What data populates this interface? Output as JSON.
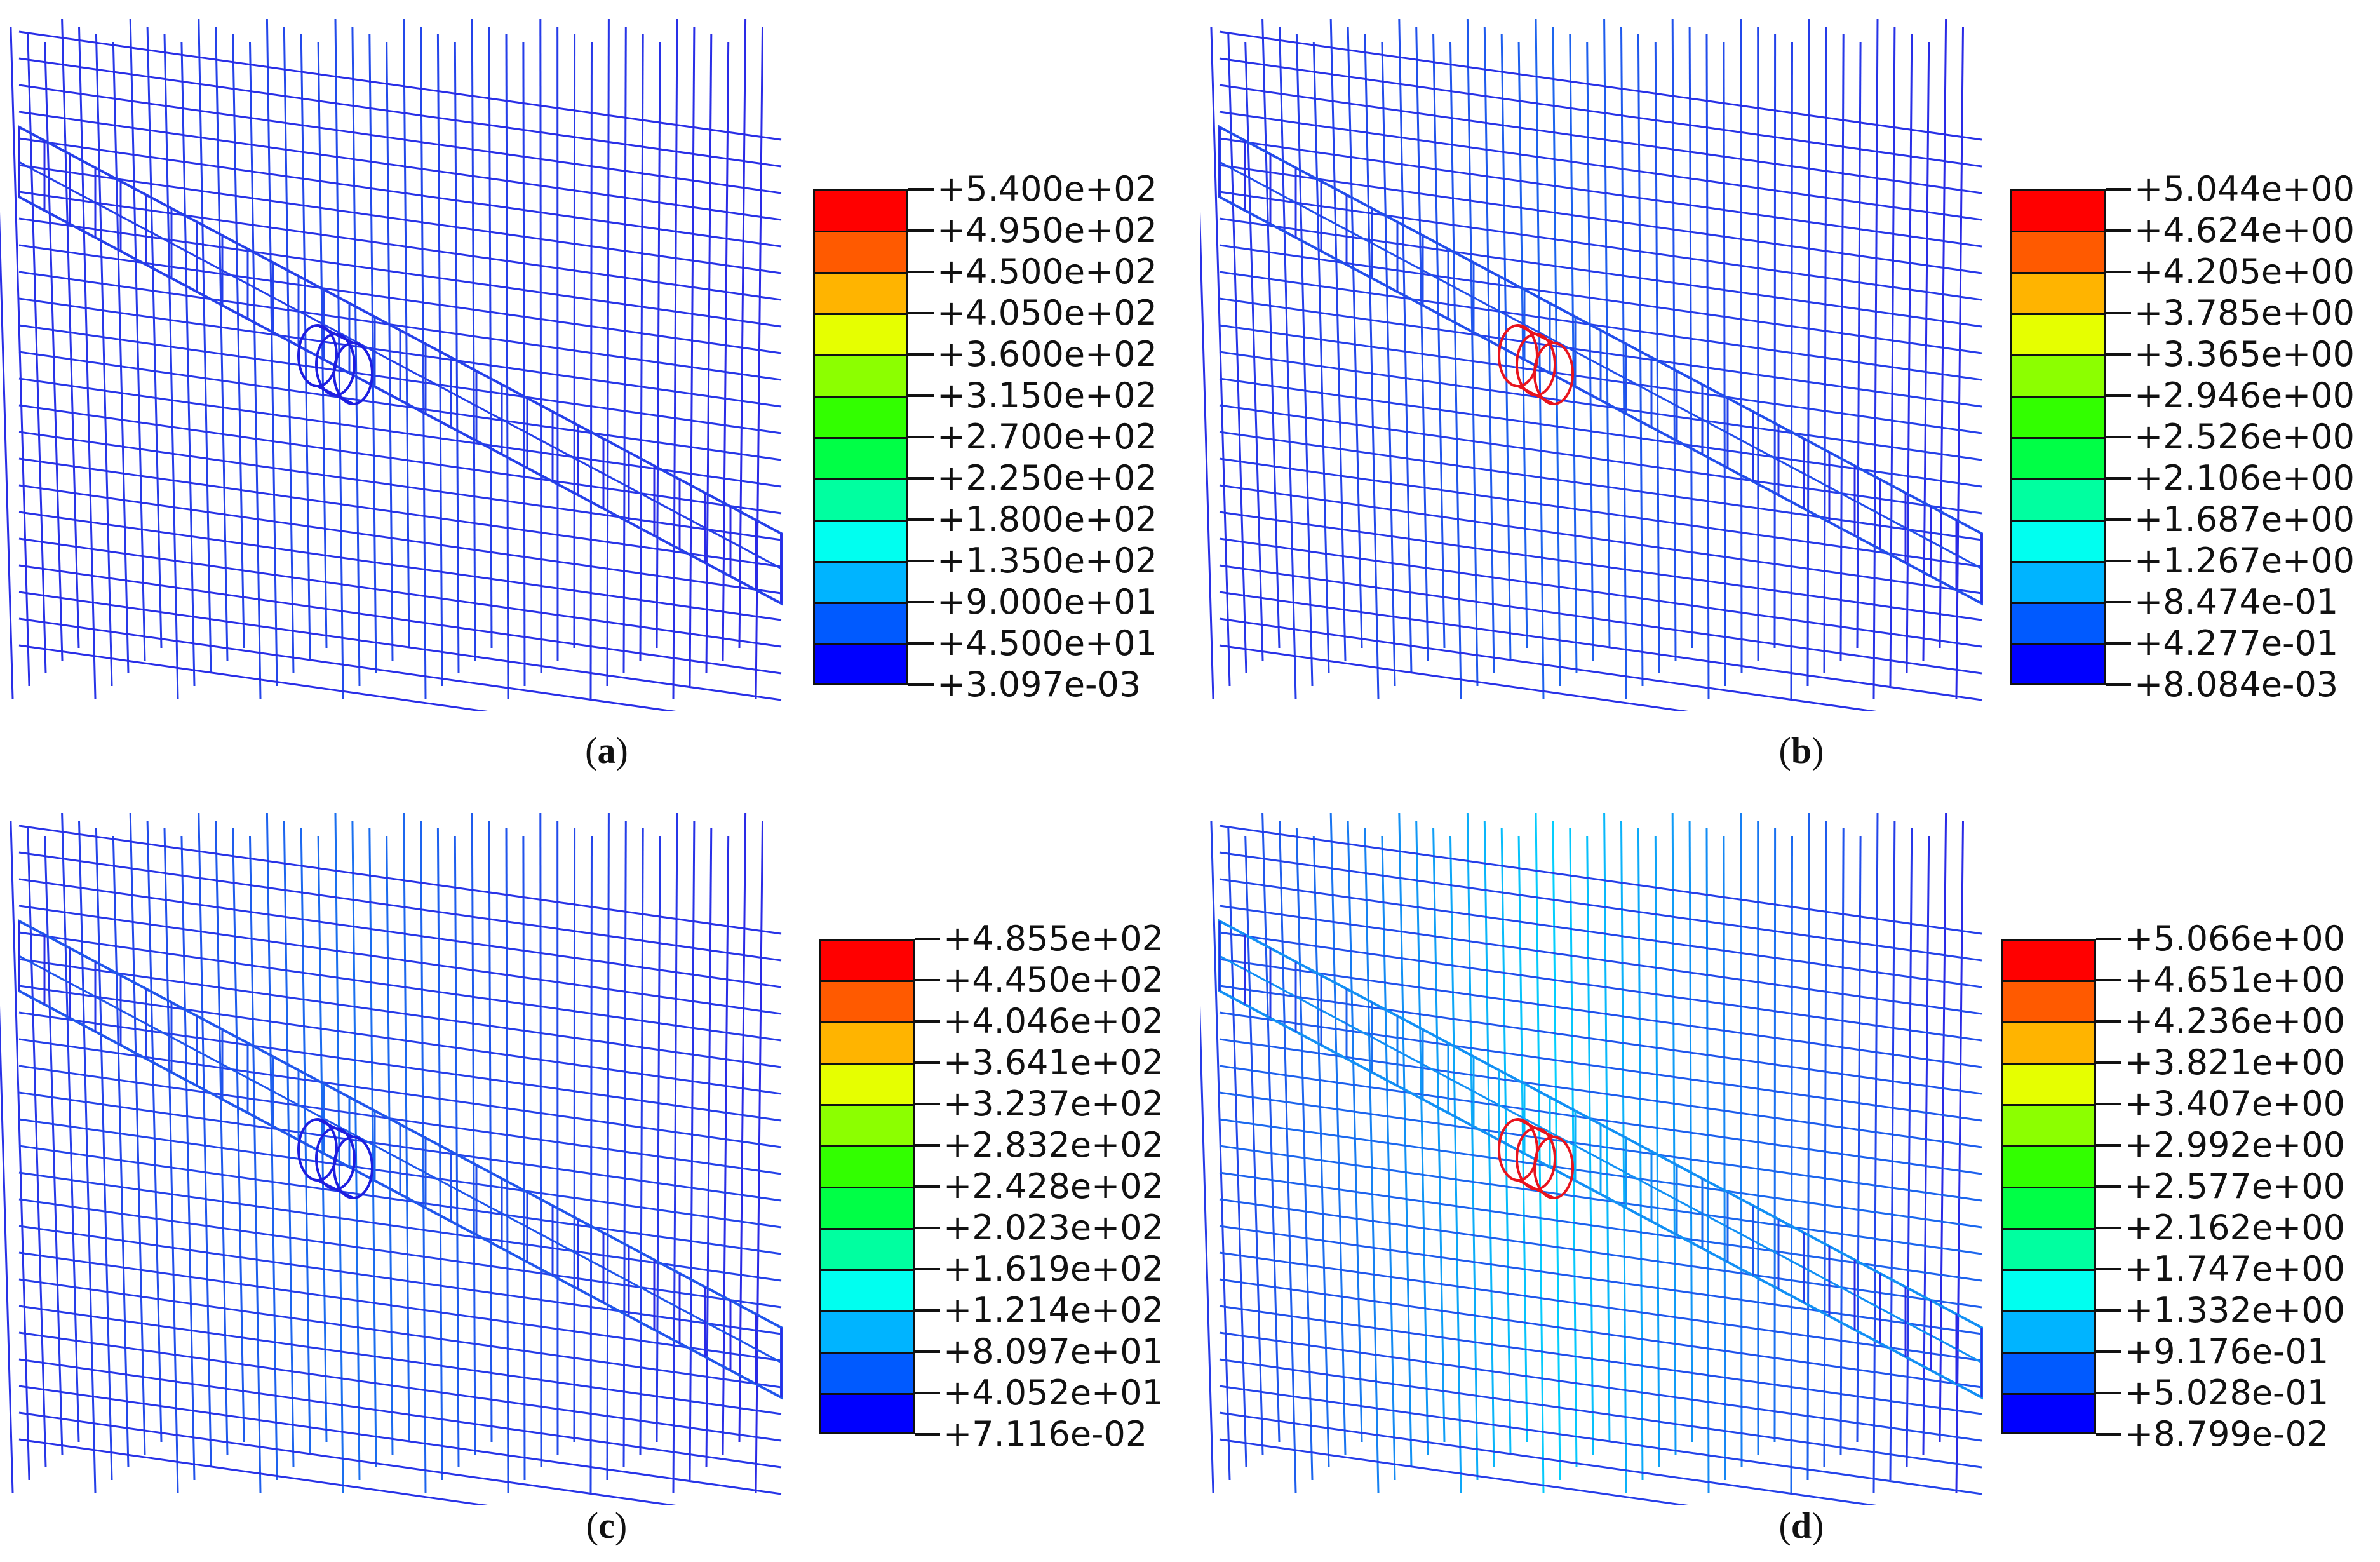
{
  "panels": [
    {
      "id": "a",
      "caption_letter": "a",
      "legend_values": [
        "+5.400e+02",
        "+4.950e+02",
        "+4.500e+02",
        "+4.050e+02",
        "+3.600e+02",
        "+3.150e+02",
        "+2.700e+02",
        "+2.250e+02",
        "+1.800e+02",
        "+1.350e+02",
        "+9.000e+01",
        "+4.500e+01",
        "+3.097e-03"
      ],
      "field_intensity": 0.15,
      "highlight_ring": "blue"
    },
    {
      "id": "b",
      "caption_letter": "b",
      "legend_values": [
        "+5.044e+00",
        "+4.624e+00",
        "+4.205e+00",
        "+3.785e+00",
        "+3.365e+00",
        "+2.946e+00",
        "+2.526e+00",
        "+2.106e+00",
        "+1.687e+00",
        "+1.267e+00",
        "+8.474e-01",
        "+4.277e-01",
        "+8.084e-03"
      ],
      "field_intensity": 0.25,
      "highlight_ring": "red"
    },
    {
      "id": "c",
      "caption_letter": "c",
      "legend_values": [
        "+4.855e+02",
        "+4.450e+02",
        "+4.046e+02",
        "+3.641e+02",
        "+3.237e+02",
        "+2.832e+02",
        "+2.428e+02",
        "+2.023e+02",
        "+1.619e+02",
        "+1.214e+02",
        "+8.097e+01",
        "+4.052e+01",
        "+7.116e-02"
      ],
      "field_intensity": 0.3,
      "highlight_ring": "blue"
    },
    {
      "id": "d",
      "caption_letter": "d",
      "legend_values": [
        "+5.066e+00",
        "+4.651e+00",
        "+4.236e+00",
        "+3.821e+00",
        "+3.407e+00",
        "+2.992e+00",
        "+2.577e+00",
        "+2.162e+00",
        "+1.747e+00",
        "+1.332e+00",
        "+9.176e-01",
        "+5.028e-01",
        "+8.799e-02"
      ],
      "field_intensity": 0.7,
      "highlight_ring": "red"
    }
  ],
  "colors": {
    "scale": [
      "#ff0000",
      "#ff5a00",
      "#ffb400",
      "#e6ff00",
      "#8cff00",
      "#32ff00",
      "#00ff46",
      "#00ffa0",
      "#00fff0",
      "#00b4ff",
      "#005aff",
      "#0000ff"
    ],
    "mesh_base": "#2a2ae6",
    "ring_red": "#e8141e",
    "ring_blue": "#1e1ee0"
  }
}
